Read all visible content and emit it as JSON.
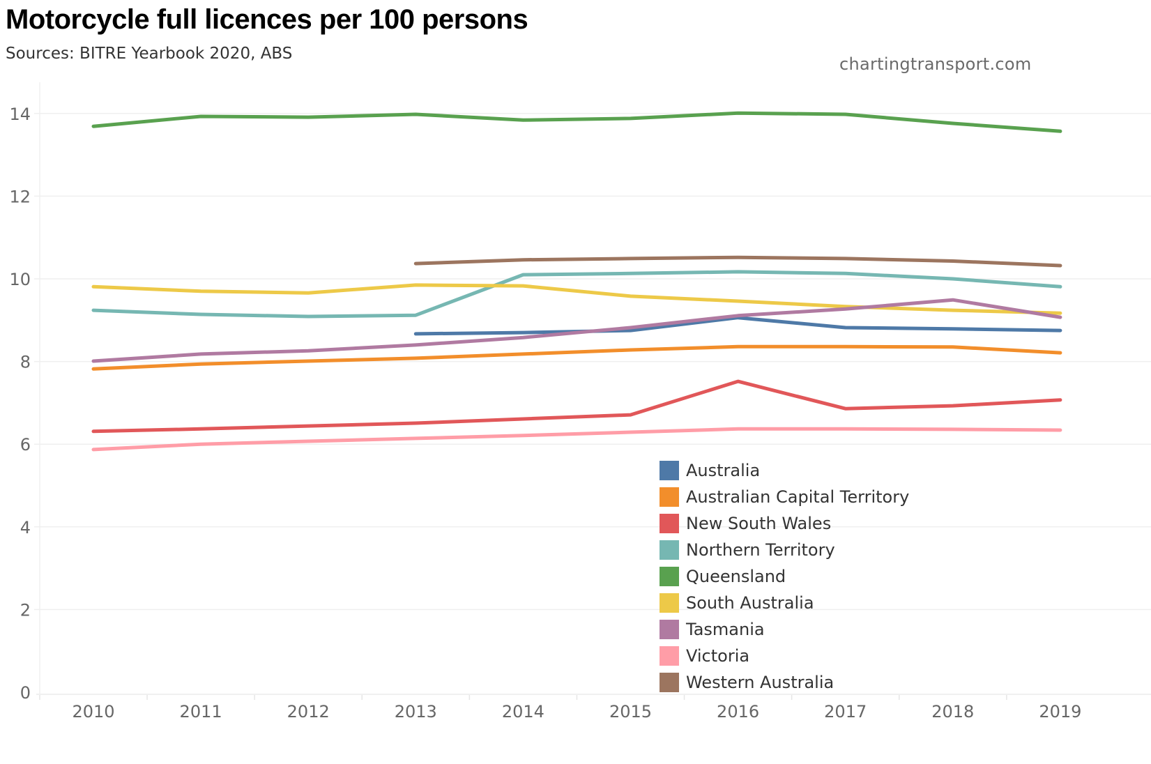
{
  "header": {
    "title": "Motorcycle full licences per 100 persons",
    "subtitle": "Sources: BITRE Yearbook 2020, ABS",
    "credit": "chartingtransport.com"
  },
  "chart_data": {
    "type": "line",
    "title": "Motorcycle full licences per 100 persons",
    "subtitle": "Sources: BITRE Yearbook 2020, ABS",
    "xlabel": "",
    "ylabel": "",
    "x": [
      2010,
      2011,
      2012,
      2013,
      2014,
      2015,
      2016,
      2017,
      2018,
      2019
    ],
    "x_tick_labels": [
      "2010",
      "2011",
      "2012",
      "2013",
      "2014",
      "2015",
      "2016",
      "2017",
      "2018",
      "2019"
    ],
    "y_ticks": [
      0,
      2,
      4,
      6,
      8,
      10,
      12,
      14
    ],
    "y_tick_labels": [
      "0",
      "2",
      "4",
      "6",
      "8",
      "10",
      "12",
      "14"
    ],
    "ylim": [
      0,
      14.8
    ],
    "grid": true,
    "legend_position": "bottom-right",
    "series": [
      {
        "name": "Australia",
        "color": "#4e79a7",
        "values": [
          null,
          null,
          null,
          8.67,
          8.7,
          8.75,
          9.06,
          8.82,
          8.79,
          8.75
        ]
      },
      {
        "name": "Australian Capital Territory",
        "color": "#f28e2b",
        "values": [
          7.82,
          7.94,
          8.01,
          8.08,
          8.18,
          8.28,
          8.36,
          8.36,
          8.35,
          8.21
        ]
      },
      {
        "name": "New South Wales",
        "color": "#e15759",
        "values": [
          6.31,
          6.37,
          6.44,
          6.51,
          6.61,
          6.71,
          7.52,
          6.86,
          6.93,
          7.07
        ]
      },
      {
        "name": "Northern Territory",
        "color": "#76b7b2",
        "values": [
          9.24,
          9.14,
          9.09,
          9.12,
          10.1,
          10.13,
          10.17,
          10.13,
          10.0,
          9.81
        ]
      },
      {
        "name": "Queensland",
        "color": "#59a14f",
        "values": [
          13.69,
          13.93,
          13.91,
          13.98,
          13.84,
          13.88,
          14.01,
          13.98,
          13.76,
          13.57
        ]
      },
      {
        "name": "South Australia",
        "color": "#edc948",
        "values": [
          9.81,
          9.7,
          9.66,
          9.85,
          9.83,
          9.58,
          9.46,
          9.33,
          9.24,
          9.17
        ]
      },
      {
        "name": "Tasmania",
        "color": "#b07aa1",
        "values": [
          8.01,
          8.18,
          8.26,
          8.4,
          8.58,
          8.82,
          9.11,
          9.27,
          9.49,
          9.07
        ]
      },
      {
        "name": "Victoria",
        "color": "#ff9da7",
        "values": [
          5.87,
          6.0,
          6.07,
          6.14,
          6.21,
          6.29,
          6.37,
          6.37,
          6.36,
          6.34
        ]
      },
      {
        "name": "Western Australia",
        "color": "#9c755f",
        "values": [
          null,
          null,
          null,
          10.37,
          10.46,
          10.49,
          10.52,
          10.49,
          10.43,
          10.32
        ]
      }
    ]
  }
}
